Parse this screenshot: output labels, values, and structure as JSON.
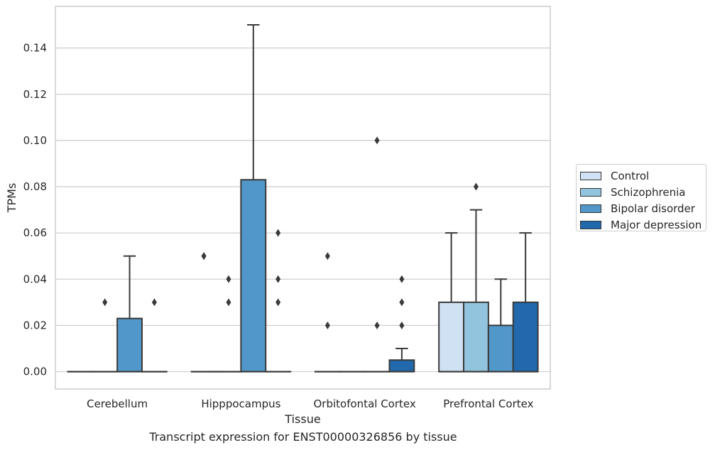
{
  "chart_data": {
    "type": "box",
    "xlabel": "Tissue",
    "ylabel": "TPMs",
    "caption": "Transcript expression for ENST00000326856 by tissue",
    "ylim": [
      -0.0075,
      0.158
    ],
    "yticks": [
      "0.00",
      "0.02",
      "0.04",
      "0.06",
      "0.08",
      "0.10",
      "0.12",
      "0.14"
    ],
    "categories": [
      "Cerebellum",
      "Hipppocampus",
      "Orbitofontal Cortex",
      "Prefrontal Cortex"
    ],
    "grid": true,
    "legend_position": "right",
    "series": [
      {
        "name": "Control",
        "color": "#cfe1f2",
        "boxes": [
          {
            "q1": 0,
            "median": 0,
            "q3": 0,
            "whisker_low": 0,
            "whisker_high": 0,
            "outliers": []
          },
          {
            "q1": 0,
            "median": 0,
            "q3": 0,
            "whisker_low": 0,
            "whisker_high": 0,
            "outliers": [
              0.05,
              0.05
            ]
          },
          {
            "q1": 0,
            "median": 0,
            "q3": 0,
            "whisker_low": 0,
            "whisker_high": 0,
            "outliers": [
              0.02,
              0.05
            ]
          },
          {
            "q1": 0,
            "median": 0,
            "q3": 0.03,
            "whisker_low": 0,
            "whisker_high": 0.06,
            "outliers": []
          }
        ]
      },
      {
        "name": "Schizophrenia",
        "color": "#93c4de",
        "boxes": [
          {
            "q1": 0,
            "median": 0,
            "q3": 0,
            "whisker_low": 0,
            "whisker_high": 0,
            "outliers": [
              0.03
            ]
          },
          {
            "q1": 0,
            "median": 0,
            "q3": 0,
            "whisker_low": 0,
            "whisker_high": 0,
            "outliers": [
              0.03,
              0.04
            ]
          },
          {
            "q1": 0,
            "median": 0,
            "q3": 0,
            "whisker_low": 0,
            "whisker_high": 0,
            "outliers": []
          },
          {
            "q1": 0,
            "median": 0,
            "q3": 0.03,
            "whisker_low": 0,
            "whisker_high": 0.07,
            "outliers": [
              0.08
            ]
          }
        ]
      },
      {
        "name": "Bipolar disorder",
        "color": "#5197c9",
        "boxes": [
          {
            "q1": 0,
            "median": 0,
            "q3": 0.023,
            "whisker_low": 0,
            "whisker_high": 0.05,
            "outliers": []
          },
          {
            "q1": 0,
            "median": 0,
            "q3": 0.083,
            "whisker_low": 0,
            "whisker_high": 0.15,
            "outliers": []
          },
          {
            "q1": 0,
            "median": 0,
            "q3": 0,
            "whisker_low": 0,
            "whisker_high": 0,
            "outliers": [
              0.02,
              0.1
            ]
          },
          {
            "q1": 0,
            "median": 0,
            "q3": 0.02,
            "whisker_low": 0,
            "whisker_high": 0.04,
            "outliers": []
          }
        ]
      },
      {
        "name": "Major depression",
        "color": "#2169ac",
        "boxes": [
          {
            "q1": 0,
            "median": 0,
            "q3": 0,
            "whisker_low": 0,
            "whisker_high": 0,
            "outliers": [
              0.03
            ]
          },
          {
            "q1": 0,
            "median": 0,
            "q3": 0,
            "whisker_low": 0,
            "whisker_high": 0,
            "outliers": [
              0.03,
              0.04,
              0.06
            ]
          },
          {
            "q1": 0,
            "median": 0,
            "q3": 0.005,
            "whisker_low": 0,
            "whisker_high": 0.01,
            "outliers": [
              0.02,
              0.03,
              0.04
            ]
          },
          {
            "q1": 0,
            "median": 0,
            "q3": 0.03,
            "whisker_low": 0,
            "whisker_high": 0.06,
            "outliers": []
          }
        ]
      }
    ]
  }
}
